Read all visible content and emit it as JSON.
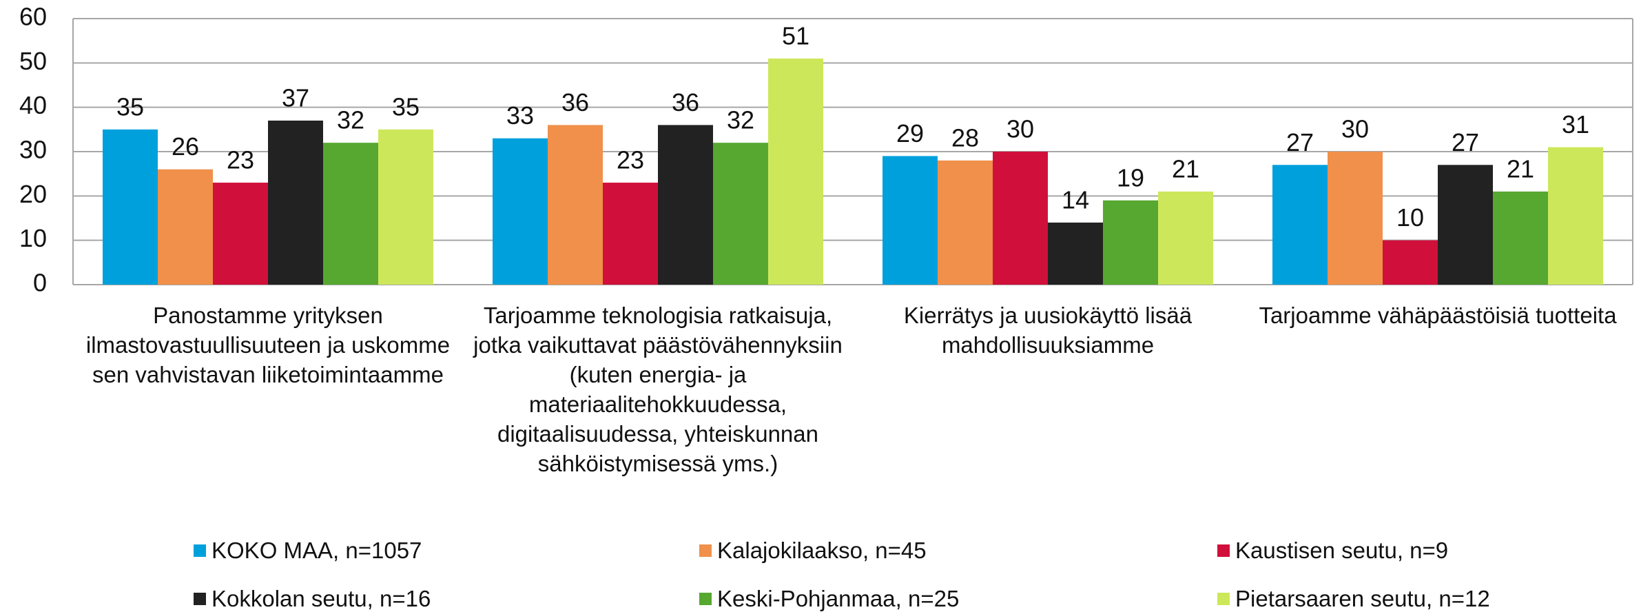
{
  "chart_data": {
    "type": "bar",
    "categories": [
      "Panostamme yrityksen ilmastovastuullisuuteen ja uskomme sen vahvistavan liiketoimintaamme",
      "Tarjoamme teknologisia ratkaisuja, jotka vaikuttavat päästövähennyksiin (kuten energia- ja materiaalitehokkuudessa, digitaalisuudessa, yhteiskunnan sähköistymisessä yms.)",
      "Kierrätys ja uusiokäyttö lisää mahdollisuuksiamme",
      "Tarjoamme vähäpäästöisiä tuotteita"
    ],
    "series": [
      {
        "name": "KOKO MAA, n=1057",
        "color": "#00a0dc",
        "values": [
          35,
          33,
          29,
          27
        ]
      },
      {
        "name": "Kalajokilaakso, n=45",
        "color": "#f0904a",
        "values": [
          26,
          36,
          28,
          30
        ]
      },
      {
        "name": "Kaustisen seutu, n=9",
        "color": "#d0103a",
        "values": [
          23,
          23,
          30,
          10
        ]
      },
      {
        "name": "Kokkolan seutu, n=16",
        "color": "#222222",
        "values": [
          37,
          36,
          14,
          27
        ]
      },
      {
        "name": "Keski-Pohjanmaa, n=25",
        "color": "#56a830",
        "values": [
          32,
          32,
          19,
          21
        ]
      },
      {
        "name": "Pietarsaaren seutu, n=12",
        "color": "#cce85a",
        "values": [
          35,
          51,
          21,
          31
        ]
      }
    ],
    "ylim": [
      0,
      60
    ],
    "yticks": [
      0,
      10,
      20,
      30,
      40,
      50,
      60
    ],
    "grid": true,
    "legend": "bottom"
  }
}
